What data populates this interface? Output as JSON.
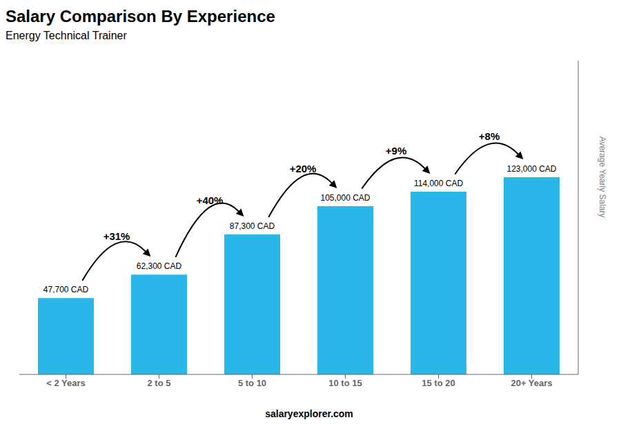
{
  "chart_data": {
    "type": "bar",
    "title": "Salary Comparison By Experience",
    "subtitle": "Energy Technical Trainer",
    "categories": [
      "< 2 Years",
      "2 to 5",
      "5 to 10",
      "10 to 15",
      "15 to 20",
      "20+ Years"
    ],
    "values": [
      47700,
      62300,
      87300,
      105000,
      114000,
      123000
    ],
    "value_labels": [
      "47,700 CAD",
      "62,300 CAD",
      "87,300 CAD",
      "105,000 CAD",
      "114,000 CAD",
      "123,000 CAD"
    ],
    "data_labels": true,
    "color": "#29b6e8",
    "ylabel": "Average Yearly Salary",
    "ylim": [
      0,
      195750
    ],
    "yticks": [],
    "tick_labels": "x",
    "grid": false,
    "annotations": [
      "+31%",
      "+40%",
      "+20%",
      "+9%",
      "+8%"
    ],
    "footer": "salaryexplorer.com"
  }
}
